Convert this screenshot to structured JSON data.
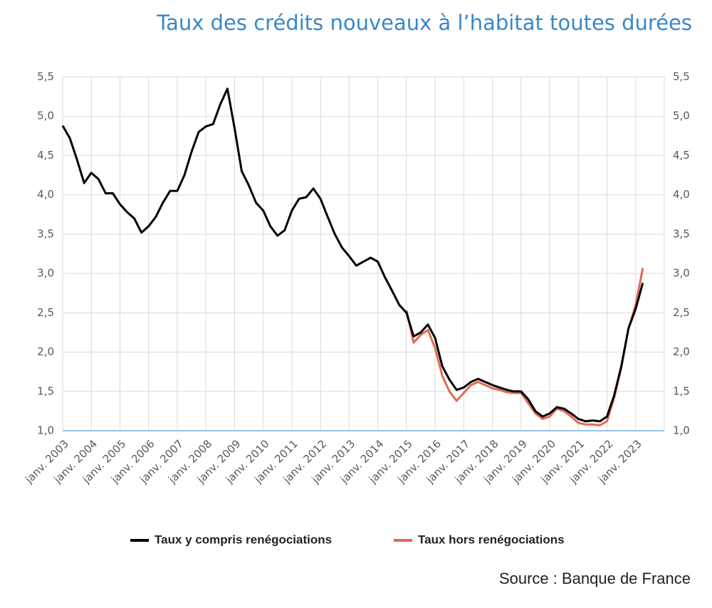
{
  "chart_data": {
    "type": "line",
    "title": "Taux des crédits nouveaux à l’habitat toutes durées",
    "source": "Source : Banque de France",
    "categories": [
      "janv. 2003",
      null,
      null,
      null,
      "janv. 2004",
      null,
      null,
      null,
      "janv. 2005",
      null,
      null,
      null,
      "janv. 2006",
      null,
      null,
      null,
      "janv. 2007",
      null,
      null,
      null,
      "janv. 2008",
      null,
      null,
      null,
      "janv. 2009",
      null,
      null,
      null,
      "janv. 2010",
      null,
      null,
      null,
      "janv. 2011",
      null,
      null,
      null,
      "janv. 2012",
      null,
      null,
      null,
      "janv. 2013",
      null,
      null,
      null,
      "janv. 2014",
      null,
      null,
      null,
      "janv. 2015",
      null,
      null,
      null,
      "janv. 2016",
      null,
      null,
      null,
      "janv. 2017",
      null,
      null,
      null,
      "janv. 2018",
      null,
      null,
      null,
      "janv. 2019",
      null,
      null,
      null,
      "janv. 2020",
      null,
      null,
      null,
      "janv. 2021",
      null,
      null,
      null,
      "janv. 2022",
      null,
      null,
      null,
      "janv. 2023",
      null
    ],
    "series": [
      {
        "name": "Taux y compris renégociations",
        "color": "#000000",
        "values": [
          4.88,
          4.72,
          4.45,
          4.15,
          4.28,
          4.2,
          4.02,
          4.02,
          3.88,
          3.78,
          3.7,
          3.52,
          3.6,
          3.72,
          3.9,
          4.05,
          4.05,
          4.25,
          4.55,
          4.8,
          4.87,
          4.9,
          5.15,
          5.35,
          4.85,
          4.3,
          4.12,
          3.9,
          3.8,
          3.6,
          3.48,
          3.55,
          3.8,
          3.95,
          3.97,
          4.08,
          3.95,
          3.72,
          3.5,
          3.33,
          3.22,
          3.1,
          3.15,
          3.2,
          3.15,
          2.95,
          2.78,
          2.6,
          2.5,
          2.2,
          2.25,
          2.35,
          2.18,
          1.82,
          1.65,
          1.52,
          1.55,
          1.62,
          1.66,
          1.62,
          1.58,
          1.55,
          1.52,
          1.5,
          1.5,
          1.4,
          1.25,
          1.18,
          1.22,
          1.3,
          1.28,
          1.22,
          1.15,
          1.12,
          1.13,
          1.12,
          1.18,
          1.45,
          1.82,
          2.3,
          2.55,
          2.88
        ]
      },
      {
        "name": "Taux hors renégociations",
        "color": "#e06a55",
        "values": [
          null,
          null,
          null,
          null,
          null,
          null,
          null,
          null,
          null,
          null,
          null,
          null,
          null,
          null,
          null,
          null,
          null,
          null,
          null,
          null,
          null,
          null,
          null,
          null,
          null,
          null,
          null,
          null,
          null,
          null,
          null,
          null,
          null,
          null,
          null,
          null,
          null,
          null,
          null,
          null,
          null,
          null,
          null,
          null,
          null,
          null,
          null,
          null,
          2.53,
          2.12,
          2.22,
          2.28,
          2.05,
          1.7,
          1.5,
          1.38,
          1.48,
          1.58,
          1.62,
          1.58,
          1.54,
          1.52,
          1.49,
          1.48,
          1.48,
          1.35,
          1.22,
          1.15,
          1.18,
          1.28,
          1.25,
          1.18,
          1.1,
          1.08,
          1.08,
          1.07,
          1.12,
          1.42,
          1.8,
          2.3,
          2.6,
          3.07
        ]
      }
    ],
    "ylim": [
      1,
      5.5
    ],
    "yticks": [
      {
        "value": 1,
        "label": "1,0"
      },
      {
        "value": 1.5,
        "label": "1,5"
      },
      {
        "value": 2,
        "label": "2,0"
      },
      {
        "value": 2.5,
        "label": "2,5"
      },
      {
        "value": 3,
        "label": "3,0"
      },
      {
        "value": 3.5,
        "label": "3,5"
      },
      {
        "value": 4,
        "label": "4,0"
      },
      {
        "value": 4.5,
        "label": "4,5"
      },
      {
        "value": 5,
        "label": "5,0"
      },
      {
        "value": 5.5,
        "label": "5,5"
      }
    ],
    "y2lim": [
      1,
      5.5
    ],
    "y2ticks": [
      {
        "value": 1,
        "label": "1,0"
      },
      {
        "value": 1.5,
        "label": "1,5"
      },
      {
        "value": 2,
        "label": "2,0"
      },
      {
        "value": 2.5,
        "label": "2,5"
      },
      {
        "value": 3,
        "label": "3,0"
      },
      {
        "value": 3.5,
        "label": "3,5"
      },
      {
        "value": 4,
        "label": "4,0"
      },
      {
        "value": 4.5,
        "label": "4,5"
      },
      {
        "value": 5,
        "label": "5,0"
      },
      {
        "value": 5.5,
        "label": "5,5"
      }
    ],
    "grid": true,
    "legend": "bottom"
  }
}
